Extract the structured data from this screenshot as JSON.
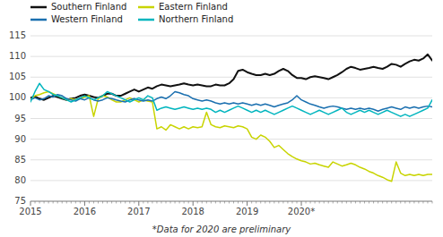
{
  "chart_data": {
    "type": "line",
    "annotations": [
      "*Data for 2020 are preliminary"
    ],
    "categories": [
      "2015",
      null,
      null,
      null,
      null,
      null,
      null,
      null,
      null,
      null,
      null,
      null,
      "2016",
      null,
      null,
      null,
      null,
      null,
      null,
      null,
      null,
      null,
      null,
      null,
      "2017",
      null,
      null,
      null,
      null,
      null,
      null,
      null,
      null,
      null,
      null,
      null,
      "2018",
      null,
      null,
      null,
      null,
      null,
      null,
      null,
      null,
      null,
      null,
      null,
      "2019",
      null,
      null,
      null,
      null,
      null,
      null,
      null,
      null,
      null,
      null,
      null,
      "2020*",
      null,
      null,
      null,
      null,
      null,
      null,
      null,
      null,
      null,
      null,
      null,
      null,
      null,
      null,
      null,
      null,
      null,
      null,
      null,
      null,
      null,
      null,
      null,
      null,
      null,
      null,
      null,
      null,
      null
    ],
    "series": [
      {
        "name": "Southern Finland",
        "color": "#111111",
        "values": [
          100.0,
          100.3,
          99.8,
          99.5,
          100.0,
          100.5,
          100.2,
          99.8,
          99.5,
          99.8,
          100.0,
          100.5,
          100.8,
          100.5,
          100.2,
          100.0,
          100.5,
          101.0,
          101.0,
          100.5,
          100.5,
          101.0,
          101.5,
          102.0,
          101.5,
          102.0,
          102.5,
          102.2,
          102.8,
          103.2,
          103.0,
          102.8,
          103.0,
          103.2,
          103.5,
          103.2,
          103.0,
          103.2,
          103.0,
          102.8,
          102.8,
          103.2,
          103.0,
          103.0,
          103.5,
          104.5,
          106.5,
          106.8,
          106.2,
          105.8,
          105.5,
          105.5,
          105.8,
          105.5,
          105.8,
          106.5,
          107.0,
          106.5,
          105.5,
          104.8,
          104.8,
          104.5,
          105.0,
          105.2,
          105.0,
          104.8,
          104.5,
          105.0,
          105.5,
          106.2,
          107.0,
          107.5,
          107.2,
          106.8,
          107.0,
          107.2,
          107.5,
          107.2,
          107.0,
          107.5,
          108.2,
          108.0,
          107.5,
          108.2,
          108.8,
          109.2,
          109.0,
          109.5,
          110.5,
          109.0
        ]
      },
      {
        "name": "Eastern Finland",
        "color": "#c8d400",
        "values": [
          99.5,
          100.5,
          100.8,
          101.2,
          101.5,
          101.0,
          100.5,
          100.0,
          99.5,
          99.8,
          99.5,
          99.8,
          100.2,
          100.5,
          95.5,
          99.8,
          100.5,
          100.2,
          99.5,
          99.0,
          99.0,
          99.5,
          100.0,
          99.5,
          99.0,
          99.5,
          99.2,
          99.0,
          92.5,
          93.0,
          92.2,
          93.5,
          93.0,
          92.5,
          93.0,
          92.5,
          93.0,
          92.8,
          93.0,
          96.5,
          93.5,
          93.0,
          92.8,
          93.2,
          93.0,
          92.8,
          93.2,
          93.0,
          92.5,
          90.5,
          90.0,
          91.0,
          90.5,
          89.5,
          88.0,
          88.5,
          87.5,
          86.5,
          85.8,
          85.2,
          84.8,
          84.5,
          84.0,
          84.2,
          83.8,
          83.5,
          83.2,
          84.5,
          84.0,
          83.5,
          83.8,
          84.2,
          83.8,
          83.2,
          82.8,
          82.2,
          81.8,
          81.2,
          80.8,
          80.2,
          79.8,
          84.5,
          81.8,
          81.2,
          81.5,
          81.2,
          81.5,
          81.2,
          81.5,
          81.5
        ]
      },
      {
        "name": "Western Finland",
        "color": "#1a6faf",
        "values": [
          99.5,
          100.0,
          99.5,
          99.8,
          100.5,
          100.2,
          100.8,
          100.5,
          99.8,
          99.5,
          99.2,
          99.8,
          99.5,
          100.0,
          99.5,
          99.2,
          99.5,
          100.0,
          99.8,
          99.5,
          99.2,
          99.0,
          99.5,
          99.8,
          99.5,
          99.2,
          99.5,
          99.2,
          99.8,
          100.2,
          99.8,
          100.5,
          101.5,
          101.2,
          100.8,
          100.5,
          99.8,
          99.5,
          99.2,
          99.5,
          99.2,
          98.8,
          98.5,
          98.8,
          98.5,
          98.8,
          98.5,
          98.8,
          98.5,
          98.2,
          98.5,
          98.2,
          98.5,
          98.2,
          97.8,
          98.2,
          98.5,
          98.8,
          99.5,
          100.5,
          99.5,
          99.0,
          98.5,
          98.2,
          97.8,
          97.5,
          97.8,
          98.0,
          97.8,
          97.5,
          97.2,
          97.5,
          97.2,
          97.5,
          97.2,
          97.5,
          97.2,
          96.8,
          97.2,
          97.5,
          97.8,
          97.5,
          97.2,
          97.8,
          97.5,
          97.8,
          97.5,
          97.8,
          98.0,
          97.8
        ]
      },
      {
        "name": "Northern Finland",
        "color": "#00b5be",
        "values": [
          99.0,
          101.5,
          103.5,
          102.0,
          101.5,
          100.8,
          100.5,
          100.0,
          99.5,
          99.0,
          99.5,
          100.0,
          100.5,
          100.0,
          99.5,
          100.0,
          100.5,
          101.5,
          101.0,
          100.5,
          100.0,
          99.5,
          99.0,
          99.5,
          100.0,
          99.5,
          100.5,
          100.0,
          97.0,
          97.5,
          97.8,
          97.5,
          97.2,
          97.5,
          97.8,
          97.5,
          97.2,
          97.5,
          97.2,
          97.5,
          97.2,
          96.5,
          97.0,
          96.5,
          97.0,
          97.5,
          98.0,
          97.5,
          97.0,
          96.5,
          97.0,
          96.5,
          97.0,
          96.5,
          96.0,
          96.5,
          97.0,
          97.5,
          98.0,
          97.5,
          97.0,
          96.5,
          96.0,
          96.5,
          97.0,
          96.5,
          96.0,
          96.5,
          97.0,
          97.5,
          96.5,
          96.0,
          96.5,
          97.0,
          96.5,
          97.0,
          96.5,
          96.0,
          96.5,
          97.0,
          96.5,
          96.0,
          95.5,
          96.0,
          95.5,
          96.0,
          96.5,
          97.0,
          97.5,
          99.5
        ]
      }
    ],
    "ylim": [
      75,
      115
    ],
    "yticks": [
      75,
      80,
      85,
      90,
      95,
      100,
      105,
      110,
      115
    ],
    "grid": true,
    "legend": "upper left"
  }
}
